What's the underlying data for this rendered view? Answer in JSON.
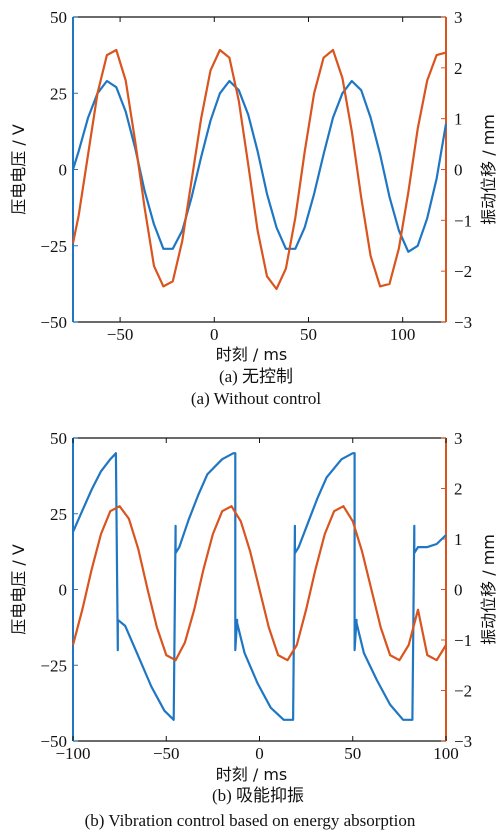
{
  "chart_data": [
    {
      "type": "line",
      "panel": "a",
      "xlabel": "时刻 / ms",
      "ylabel_left": "压电电压 / V",
      "ylabel_right": "振动位移 / mm",
      "caption_cn": "(a) 无控制",
      "caption_en": "(a) Without control",
      "xlim": [
        -75,
        123
      ],
      "ylim_left": [
        -50,
        50
      ],
      "ylim_right": [
        -3,
        3
      ],
      "xticks": [
        -50,
        0,
        50,
        100
      ],
      "xtick_labels": [
        "−50",
        "0",
        "50",
        "100"
      ],
      "yticks_left": [
        -50,
        -25,
        0,
        25,
        50
      ],
      "ytick_labels_left": [
        "−50",
        "−25",
        "0",
        "25",
        "50"
      ],
      "yticks_right": [
        -3,
        -2,
        -1,
        0,
        1,
        2,
        3
      ],
      "ytick_labels_right": [
        "−3",
        "−2",
        "−1",
        "0",
        "1",
        "2",
        "3"
      ],
      "colors": {
        "voltage": "#1f77c4",
        "displacement": "#d9541e"
      },
      "series": [
        {
          "axis": "left",
          "color": "#1f77c4",
          "x": [
            -75,
            -72,
            -67,
            -62,
            -57,
            -52,
            -47,
            -42,
            -37,
            -32,
            -27,
            -22,
            -17,
            -12,
            -7,
            -2,
            3,
            8,
            13,
            18,
            23,
            28,
            33,
            38,
            43,
            48,
            53,
            58,
            63,
            68,
            73,
            78,
            83,
            88,
            93,
            98,
            103,
            108,
            113,
            118,
            123
          ],
          "y": [
            0,
            6,
            17,
            25,
            29,
            27,
            19,
            7,
            -7,
            -18,
            -26,
            -26,
            -20,
            -9,
            4,
            16,
            25,
            29,
            26,
            18,
            6,
            -8,
            -19,
            -26,
            -26,
            -19,
            -8,
            5,
            17,
            25,
            29,
            26,
            17,
            5,
            -9,
            -20,
            -27,
            -25,
            -16,
            -3,
            15
          ]
        },
        {
          "axis": "right",
          "color": "#d9541e",
          "x": [
            -75,
            -72,
            -67,
            -62,
            -57,
            -52,
            -47,
            -42,
            -37,
            -32,
            -27,
            -22,
            -17,
            -12,
            -7,
            -2,
            3,
            8,
            13,
            18,
            23,
            28,
            33,
            38,
            43,
            48,
            53,
            58,
            63,
            68,
            73,
            78,
            83,
            88,
            93,
            98,
            103,
            108,
            113,
            118,
            123
          ],
          "y": [
            -1.45,
            -0.9,
            0.3,
            1.5,
            2.25,
            2.35,
            1.75,
            0.55,
            -0.75,
            -1.9,
            -2.3,
            -2.2,
            -1.4,
            -0.2,
            1.0,
            1.95,
            2.35,
            2.2,
            1.35,
            0.1,
            -1.2,
            -2.1,
            -2.35,
            -1.95,
            -0.95,
            0.35,
            1.5,
            2.2,
            2.35,
            1.8,
            0.75,
            -0.55,
            -1.7,
            -2.3,
            -2.25,
            -1.55,
            -0.45,
            0.8,
            1.75,
            2.25,
            2.3
          ]
        }
      ]
    },
    {
      "type": "line",
      "panel": "b",
      "xlabel": "时刻 / ms",
      "ylabel_left": "压电电压 / V",
      "ylabel_right": "振动位移 / mm",
      "caption_cn": "(b) 吸能抑振",
      "caption_en": "(b) Vibration control based on energy absorption",
      "xlim": [
        -100,
        100
      ],
      "ylim_left": [
        -50,
        50
      ],
      "ylim_right": [
        -3,
        3
      ],
      "xticks": [
        -100,
        -50,
        0,
        50,
        100
      ],
      "xtick_labels": [
        "−100",
        "−50",
        "0",
        "50",
        "100"
      ],
      "yticks_left": [
        -50,
        -25,
        0,
        25,
        50
      ],
      "ytick_labels_left": [
        "−50",
        "−25",
        "0",
        "25",
        "50"
      ],
      "yticks_right": [
        -3,
        -2,
        -1,
        0,
        1,
        2,
        3
      ],
      "ytick_labels_right": [
        "−3",
        "−2",
        "−1",
        "0",
        "1",
        "2",
        "3"
      ],
      "colors": {
        "voltage": "#1f77c4",
        "displacement": "#d9541e"
      },
      "series": [
        {
          "axis": "left",
          "color": "#1f77c4",
          "x": [
            -100,
            -95,
            -90,
            -85,
            -80,
            -77,
            -77,
            -76,
            -76,
            -72,
            -65,
            -58,
            -51,
            -46,
            -46,
            -45,
            -45,
            -43,
            -38,
            -33,
            -28,
            -20,
            -14,
            -13,
            -13,
            -12,
            -12,
            -8,
            -1,
            6,
            13,
            18,
            18,
            19,
            19,
            21,
            26,
            31,
            36,
            44,
            50,
            51,
            51,
            52,
            52,
            56,
            63,
            70,
            77,
            82,
            82,
            83,
            83,
            85,
            90,
            95,
            100
          ],
          "y": [
            19,
            26,
            33,
            39,
            43,
            45,
            45,
            -20,
            -10,
            -12,
            -22,
            -32,
            -40,
            -43,
            -43,
            21,
            12,
            14,
            23,
            31,
            38,
            43,
            45,
            45,
            -20,
            -10,
            -11,
            -21,
            -31,
            -39,
            -43,
            -43,
            -43,
            21,
            12,
            14,
            22,
            30,
            37,
            43,
            45,
            45,
            -20,
            -10,
            -11,
            -21,
            -30,
            -38,
            -43,
            -43,
            -43,
            21,
            12,
            14,
            14,
            15,
            18
          ]
        },
        {
          "axis": "right",
          "color": "#d9541e",
          "x": [
            -100,
            -95,
            -90,
            -85,
            -80,
            -75,
            -70,
            -65,
            -60,
            -55,
            -50,
            -45,
            -40,
            -35,
            -30,
            -25,
            -20,
            -15,
            -10,
            -5,
            0,
            5,
            10,
            15,
            20,
            25,
            30,
            35,
            40,
            45,
            50,
            55,
            60,
            65,
            70,
            75,
            80,
            85,
            90,
            95,
            100
          ],
          "y": [
            -1.1,
            -0.4,
            0.4,
            1.1,
            1.55,
            1.65,
            1.4,
            0.8,
            0.0,
            -0.75,
            -1.3,
            -1.4,
            -1.05,
            -0.4,
            0.4,
            1.1,
            1.55,
            1.65,
            1.35,
            0.75,
            0.0,
            -0.75,
            -1.3,
            -1.4,
            -1.1,
            -0.4,
            0.4,
            1.1,
            1.55,
            1.65,
            1.35,
            0.75,
            0.0,
            -0.75,
            -1.3,
            -1.4,
            -1.1,
            -0.4,
            -1.3,
            -1.4,
            -1.1
          ]
        }
      ]
    }
  ]
}
